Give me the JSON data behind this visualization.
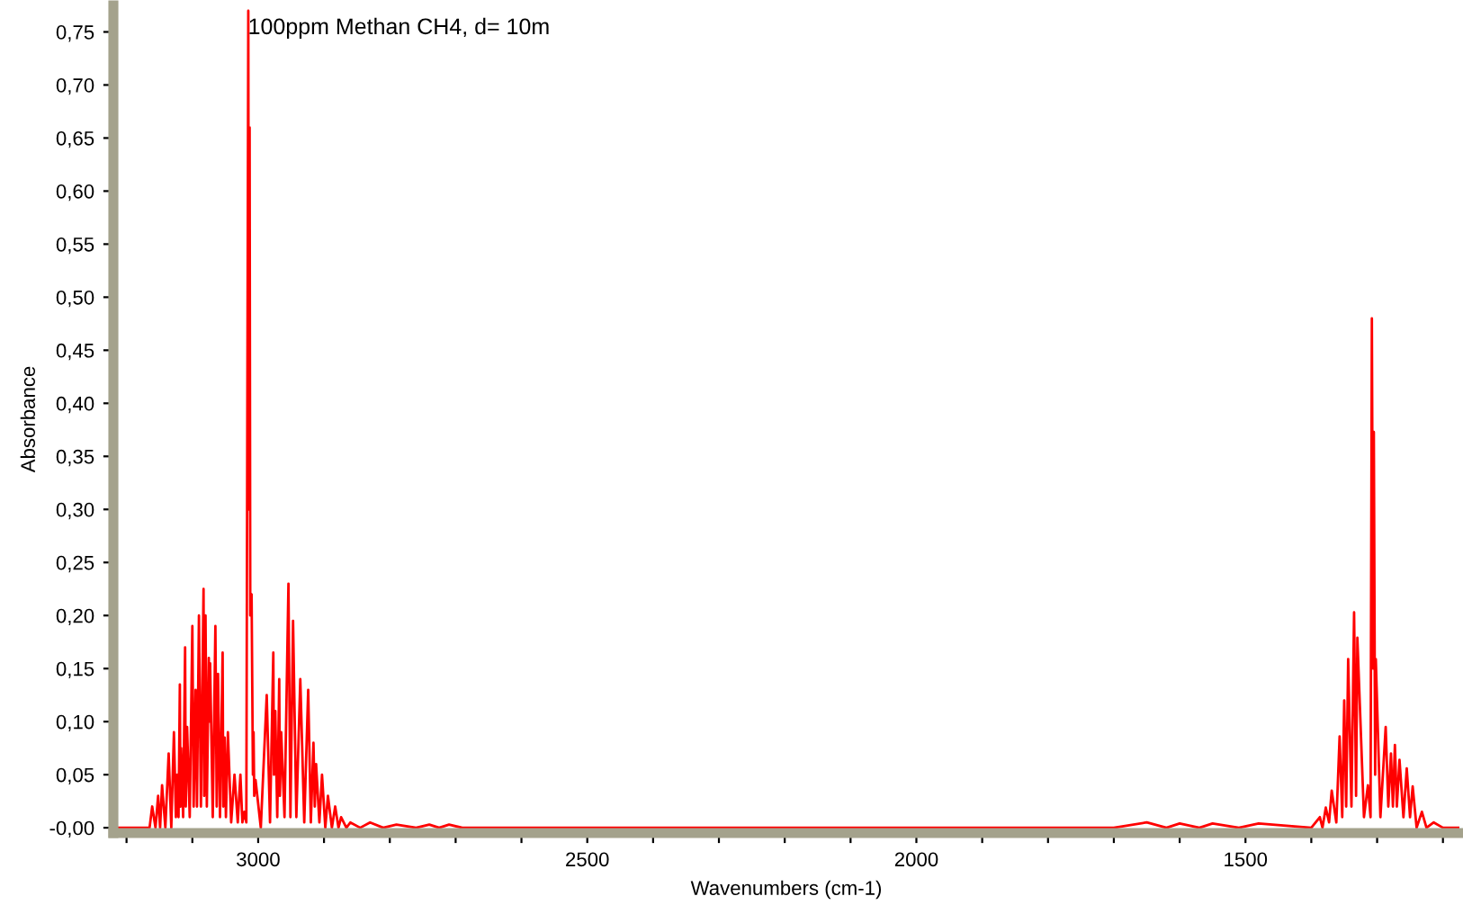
{
  "chart_data": {
    "type": "line",
    "title": "100ppm Methan CH4, d= 10m",
    "xlabel": "Wavenumbers (cm-1)",
    "ylabel": "Absorbance",
    "xlim": [
      3220,
      1175
    ],
    "ylim": [
      -0.005,
      0.775
    ],
    "xticks": [
      {
        "value": 3200,
        "label": null
      },
      {
        "value": 3100,
        "label": null
      },
      {
        "value": 3000,
        "label": "3000"
      },
      {
        "value": 2900,
        "label": null
      },
      {
        "value": 2800,
        "label": null
      },
      {
        "value": 2700,
        "label": null
      },
      {
        "value": 2600,
        "label": null
      },
      {
        "value": 2500,
        "label": "2500"
      },
      {
        "value": 2400,
        "label": null
      },
      {
        "value": 2300,
        "label": null
      },
      {
        "value": 2200,
        "label": null
      },
      {
        "value": 2100,
        "label": null
      },
      {
        "value": 2000,
        "label": "2000"
      },
      {
        "value": 1900,
        "label": null
      },
      {
        "value": 1800,
        "label": null
      },
      {
        "value": 1700,
        "label": null
      },
      {
        "value": 1600,
        "label": null
      },
      {
        "value": 1500,
        "label": "1500"
      },
      {
        "value": 1400,
        "label": null
      },
      {
        "value": 1300,
        "label": null
      },
      {
        "value": 1200,
        "label": null
      }
    ],
    "yticks": [
      {
        "value": 0,
        "label": "-0,00"
      },
      {
        "value": 0.05,
        "label": "0,05"
      },
      {
        "value": 0.1,
        "label": "0,10"
      },
      {
        "value": 0.15,
        "label": "0,15"
      },
      {
        "value": 0.2,
        "label": "0,20"
      },
      {
        "value": 0.25,
        "label": "0,25"
      },
      {
        "value": 0.3,
        "label": "0,30"
      },
      {
        "value": 0.35,
        "label": "0,35"
      },
      {
        "value": 0.4,
        "label": "0,40"
      },
      {
        "value": 0.45,
        "label": "0,45"
      },
      {
        "value": 0.5,
        "label": "0,50"
      },
      {
        "value": 0.55,
        "label": "0,55"
      },
      {
        "value": 0.6,
        "label": "0,60"
      },
      {
        "value": 0.65,
        "label": "0,65"
      },
      {
        "value": 0.7,
        "label": "0,70"
      },
      {
        "value": 0.75,
        "label": "0,75"
      }
    ],
    "grid": false,
    "legend": false,
    "marker": "none",
    "line_style": "solid",
    "series": [
      {
        "color": "#ff0000",
        "x": [
          3220,
          3165,
          3161,
          3156,
          3152,
          3149,
          3146,
          3141,
          3136,
          3132,
          3128,
          3125,
          3123,
          3121,
          3119,
          3118,
          3117,
          3114,
          3111,
          3110,
          3108,
          3104,
          3100,
          3098,
          3095,
          3093,
          3090,
          3087,
          3083,
          3082,
          3080,
          3078,
          3075,
          3074,
          3073,
          3069,
          3065,
          3063,
          3061,
          3058,
          3054,
          3053,
          3051,
          3049,
          3046,
          3041,
          3036,
          3031,
          3027,
          3024,
          3021,
          3018,
          3015,
          3014,
          3013,
          3012,
          3010,
          3008,
          3007,
          3006,
          3004,
          2996,
          2987,
          2982,
          2977,
          2976,
          2974,
          2971,
          2968,
          2967,
          2965,
          2960,
          2954,
          2951,
          2947,
          2942,
          2936,
          2930,
          2924,
          2920,
          2916,
          2914,
          2912,
          2907,
          2903,
          2898,
          2894,
          2888,
          2883,
          2878,
          2874,
          2866,
          2860,
          2845,
          2830,
          2810,
          2790,
          2760,
          2740,
          2725,
          2710,
          2690,
          1700,
          1650,
          1620,
          1600,
          1570,
          1550,
          1510,
          1480,
          1400,
          1387,
          1383,
          1378,
          1373,
          1369,
          1362,
          1357,
          1353,
          1350,
          1347,
          1344,
          1339,
          1335,
          1332,
          1330,
          1320,
          1314,
          1310,
          1308,
          1306,
          1305,
          1303,
          1302,
          1295,
          1287,
          1283,
          1279,
          1276,
          1273,
          1270,
          1266,
          1260,
          1255,
          1250,
          1246,
          1240,
          1232,
          1225,
          1214,
          1200,
          1175
        ],
        "values": [
          0,
          0,
          0.02,
          0,
          0.03,
          0,
          0.04,
          0,
          0.07,
          0,
          0.09,
          0.01,
          0.05,
          0.01,
          0.135,
          0.02,
          0.075,
          0.01,
          0.17,
          0.02,
          0.095,
          0.01,
          0.19,
          0.02,
          0.13,
          0.02,
          0.2,
          0.02,
          0.225,
          0.03,
          0.2,
          0.02,
          0.16,
          0.1,
          0.155,
          0.01,
          0.19,
          0.02,
          0.145,
          0.01,
          0.165,
          0.02,
          0.085,
          0.01,
          0.09,
          0.005,
          0.05,
          0.005,
          0.05,
          0.005,
          0.015,
          0.005,
          0.77,
          0.3,
          0.66,
          0.2,
          0.22,
          0.05,
          0.09,
          0.03,
          0.045,
          0,
          0.125,
          0.005,
          0.165,
          0.05,
          0.11,
          0.01,
          0.14,
          0.03,
          0.09,
          0.01,
          0.23,
          0.01,
          0.195,
          0.01,
          0.14,
          0.005,
          0.13,
          0.005,
          0.08,
          0.02,
          0.06,
          0.005,
          0.05,
          0,
          0.03,
          0,
          0.02,
          0,
          0.01,
          0,
          0.005,
          0,
          0.005,
          0,
          0.003,
          0,
          0.003,
          0,
          0.003,
          0,
          0,
          0.005,
          0,
          0.004,
          0,
          0.004,
          0,
          0.004,
          0,
          0.01,
          0,
          0.019,
          0.005,
          0.035,
          0.005,
          0.086,
          0.01,
          0.12,
          0.02,
          0.159,
          0.02,
          0.203,
          0.03,
          0.179,
          0.01,
          0.04,
          0.01,
          0.48,
          0.15,
          0.373,
          0.05,
          0.159,
          0.01,
          0.095,
          0.02,
          0.07,
          0.02,
          0.078,
          0.02,
          0.064,
          0.01,
          0.056,
          0.01,
          0.039,
          0,
          0.015,
          0,
          0.005,
          0,
          0
        ]
      }
    ]
  }
}
